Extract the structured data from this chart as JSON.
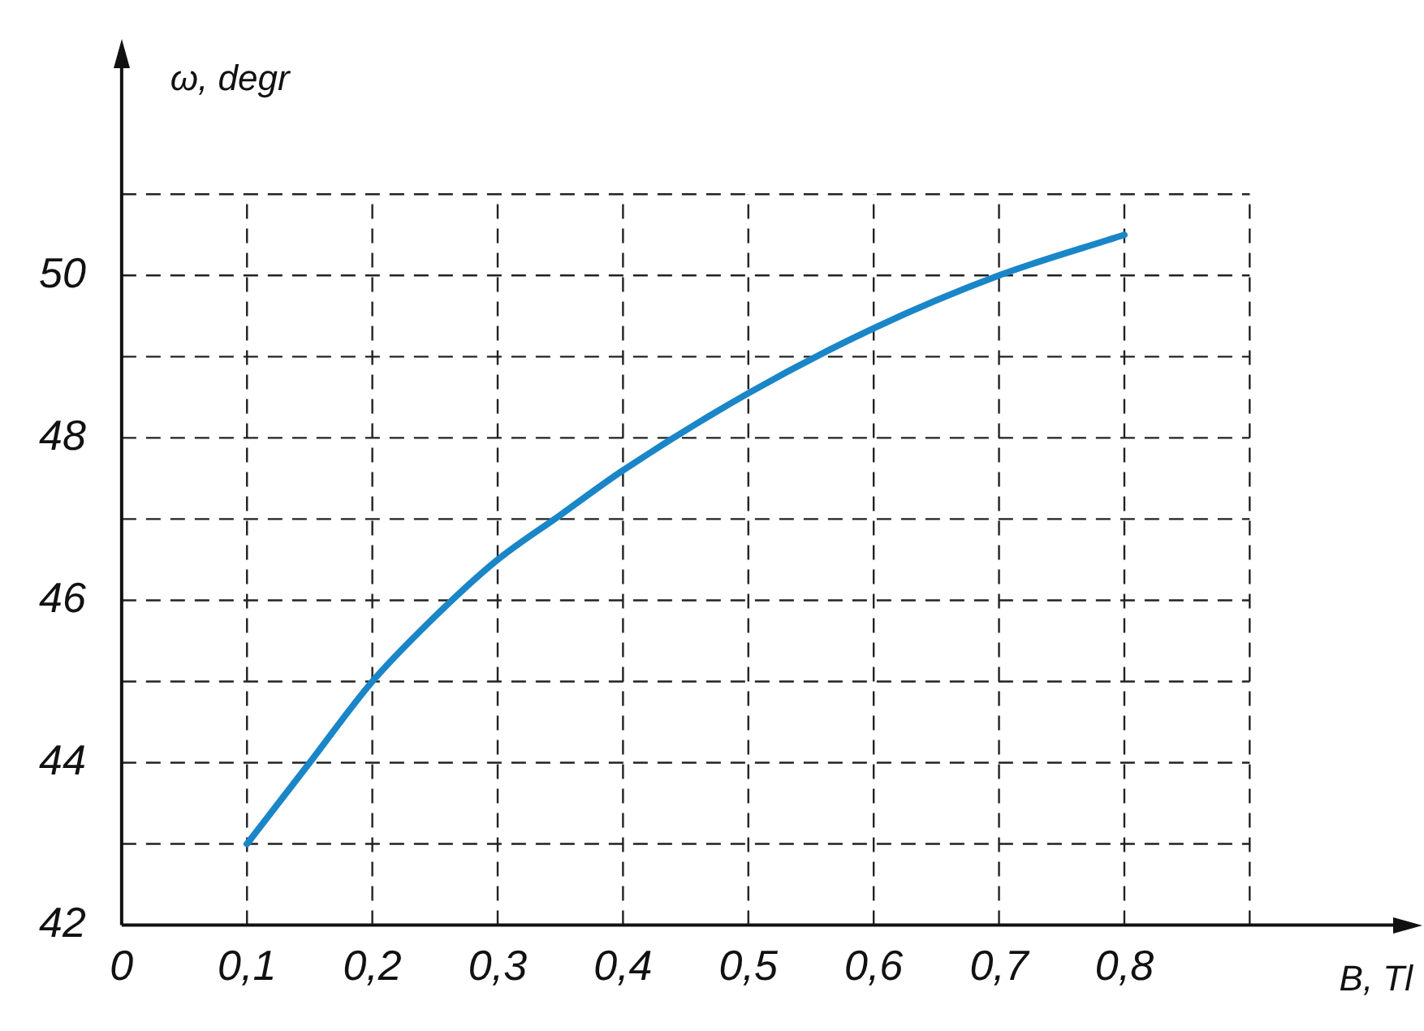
{
  "chart_data": {
    "type": "line",
    "xlabel": "B, Tl",
    "ylabel": "ω, degr",
    "x": [
      0.1,
      0.15,
      0.2,
      0.25,
      0.3,
      0.35,
      0.4,
      0.5,
      0.6,
      0.7,
      0.8
    ],
    "series": [
      {
        "color": "#1a86c8",
        "values": [
          43.0,
          44.0,
          45.0,
          45.8,
          46.5,
          47.05,
          47.6,
          48.55,
          49.35,
          50.0,
          50.5
        ]
      }
    ],
    "xlim": [
      0,
      1.03
    ],
    "ylim": [
      42,
      52.8
    ],
    "xticks": [
      {
        "value": 0,
        "label": "0"
      },
      {
        "value": 0.1,
        "label": "0,1"
      },
      {
        "value": 0.2,
        "label": "0,2"
      },
      {
        "value": 0.3,
        "label": "0,3"
      },
      {
        "value": 0.4,
        "label": "0,4"
      },
      {
        "value": 0.5,
        "label": "0,5"
      },
      {
        "value": 0.6,
        "label": "0,6"
      },
      {
        "value": 0.7,
        "label": "0,7"
      },
      {
        "value": 0.8,
        "label": "0,8"
      },
      {
        "value": 0.9,
        "label": null
      }
    ],
    "yticks": [
      42,
      {
        "value": 43,
        "label": null
      },
      44,
      {
        "value": 45,
        "label": null
      },
      46,
      {
        "value": 47,
        "label": null
      },
      48,
      {
        "value": 49,
        "label": null
      },
      50,
      {
        "value": 51,
        "label": null
      }
    ],
    "grid": true,
    "line_style": "solid",
    "marker": "none",
    "legend": false
  }
}
